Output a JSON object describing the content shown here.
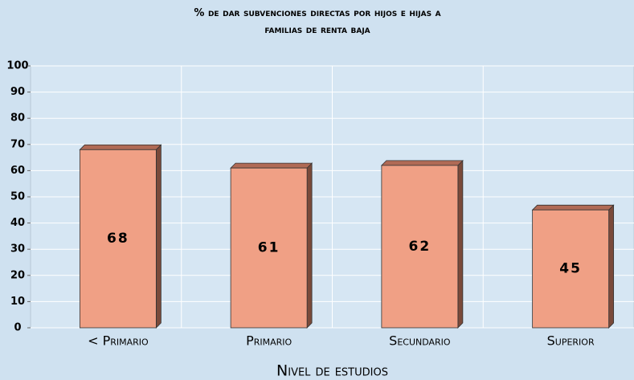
{
  "chart_data": {
    "type": "bar",
    "title": "% de dar subvenciones directas por hijos e hijas a familias de renta baja",
    "x_label": "Nivel de estudios",
    "categories": [
      "< Primario",
      "Primario",
      "Secundario",
      "Superior"
    ],
    "values": [
      68,
      61,
      62,
      45
    ],
    "color": "#f0a085",
    "ylim": [
      0,
      100
    ],
    "yticks": [
      0,
      10,
      20,
      30,
      40,
      50,
      60,
      70,
      80,
      90,
      100
    ],
    "grid": true
  }
}
